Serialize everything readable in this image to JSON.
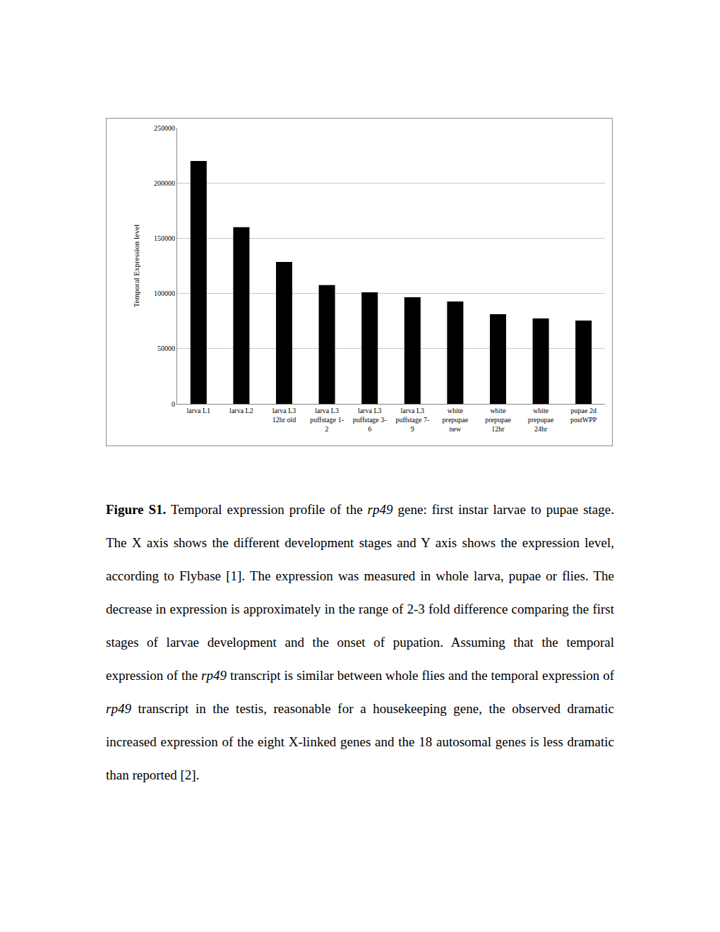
{
  "chart_data": {
    "type": "bar",
    "y_label": "Temporal Expression level",
    "categories": [
      "larva L1",
      "larva L2",
      "larva L3\n12hr old",
      "larva L3\npuffstage 1-\n2",
      "larva L3\npuffstage 3-\n6",
      "larva L3\npuffstage 7-\n9",
      "white\nprepupae\nnew",
      "white\nprepupae\n12hr",
      "white\nprepupae\n24hr",
      "pupae 2d\npostWPP"
    ],
    "values": [
      220000,
      160000,
      128500,
      107500,
      101000,
      96500,
      92700,
      81200,
      77400,
      75500
    ],
    "color": "#000000",
    "ylim": [
      0,
      250000
    ],
    "yticks": [
      0,
      50000,
      100000,
      150000,
      200000,
      250000
    ],
    "grid": true
  },
  "caption": [
    {
      "text": "Figure S1.",
      "style": "bold"
    },
    {
      "text": " Temporal expression profile of the ",
      "style": "normal"
    },
    {
      "text": "rp49",
      "style": "italic"
    },
    {
      "text": " gene: first instar larvae to pupae stage. The X axis shows the different development stages and Y axis shows the expression level, according to Flybase [1]. The expression was measured in whole larva, pupae or flies. The decrease in expression is approximately in the range of 2-3 fold difference comparing the first stages of larvae development and the onset of pupation. Assuming that the temporal expression of the ",
      "style": "normal"
    },
    {
      "text": "rp49",
      "style": "italic"
    },
    {
      "text": " transcript is similar between whole flies and the temporal expression of ",
      "style": "normal"
    },
    {
      "text": "rp49",
      "style": "italic"
    },
    {
      "text": " transcript in the testis, reasonable for a housekeeping gene, the observed dramatic increased expression of the eight X-linked genes and the 18 autosomal genes is less dramatic than reported [2].",
      "style": "normal"
    }
  ]
}
